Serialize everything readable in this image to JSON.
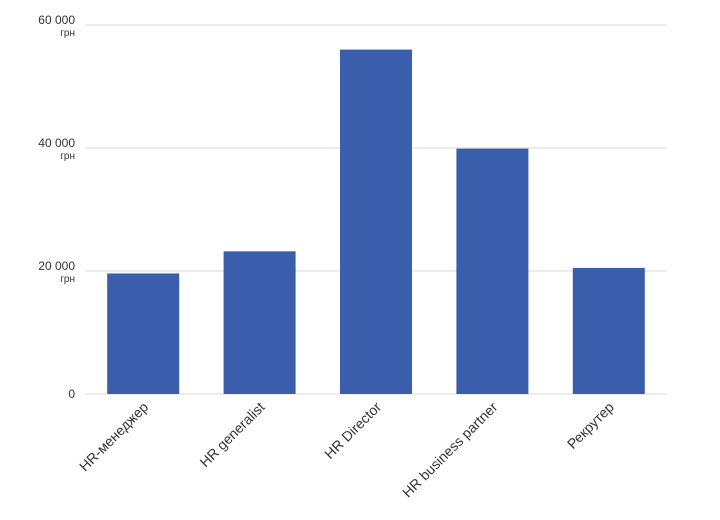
{
  "chart_data": {
    "type": "bar",
    "categories": [
      "HR-менеджер",
      "HR generalist",
      "HR Director",
      "HR business partner",
      "Рекрутер"
    ],
    "values": [
      19600,
      23200,
      56000,
      39900,
      20500
    ],
    "title": "",
    "xlabel": "",
    "ylabel": "",
    "ylim": [
      0,
      60000
    ],
    "yticks": [
      {
        "value": 0,
        "label": "0",
        "unit": ""
      },
      {
        "value": 20000,
        "label": "20 000",
        "unit": "грн"
      },
      {
        "value": 40000,
        "label": "40 000",
        "unit": "грн"
      },
      {
        "value": 60000,
        "label": "60 000",
        "unit": "грн"
      }
    ],
    "grid": true,
    "legend": "none",
    "bar_color": "#3a5eab",
    "grid_color": "#d9d9d9"
  }
}
